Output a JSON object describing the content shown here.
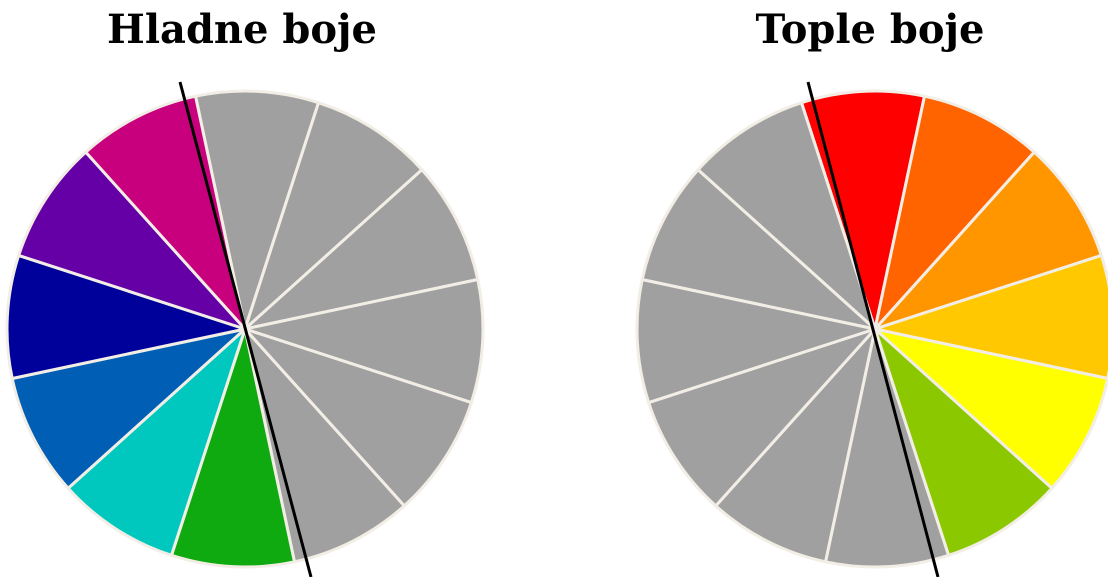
{
  "wheels": [
    {
      "id": "cool",
      "title": "Hladne boje",
      "segments": [
        {
          "name": "gray",
          "color": "#A0A0A0"
        },
        {
          "name": "gray",
          "color": "#A0A0A0"
        },
        {
          "name": "gray",
          "color": "#A0A0A0"
        },
        {
          "name": "gray",
          "color": "#A0A0A0"
        },
        {
          "name": "gray",
          "color": "#A0A0A0"
        },
        {
          "name": "gray",
          "color": "#A0A0A0"
        },
        {
          "name": "green",
          "color": "#0FAA0F"
        },
        {
          "name": "turquoise",
          "color": "#00C8BE"
        },
        {
          "name": "medium-blue",
          "color": "#005FB4"
        },
        {
          "name": "dark-blue",
          "color": "#00009B"
        },
        {
          "name": "violet",
          "color": "#6400A5"
        },
        {
          "name": "magenta",
          "color": "#C8007D"
        }
      ]
    },
    {
      "id": "warm",
      "title": "Tople boje",
      "segments": [
        {
          "name": "red",
          "color": "#FF0000"
        },
        {
          "name": "red-orange",
          "color": "#FF6400"
        },
        {
          "name": "orange",
          "color": "#FF9600"
        },
        {
          "name": "yellow-orange",
          "color": "#FFC800"
        },
        {
          "name": "yellow",
          "color": "#FFFF00"
        },
        {
          "name": "yellow-green",
          "color": "#8CC800"
        },
        {
          "name": "gray",
          "color": "#A0A0A0"
        },
        {
          "name": "gray",
          "color": "#A0A0A0"
        },
        {
          "name": "gray",
          "color": "#A0A0A0"
        },
        {
          "name": "gray",
          "color": "#A0A0A0"
        },
        {
          "name": "gray",
          "color": "#A0A0A0"
        },
        {
          "name": "gray",
          "color": "#A0A0A0"
        }
      ]
    }
  ]
}
